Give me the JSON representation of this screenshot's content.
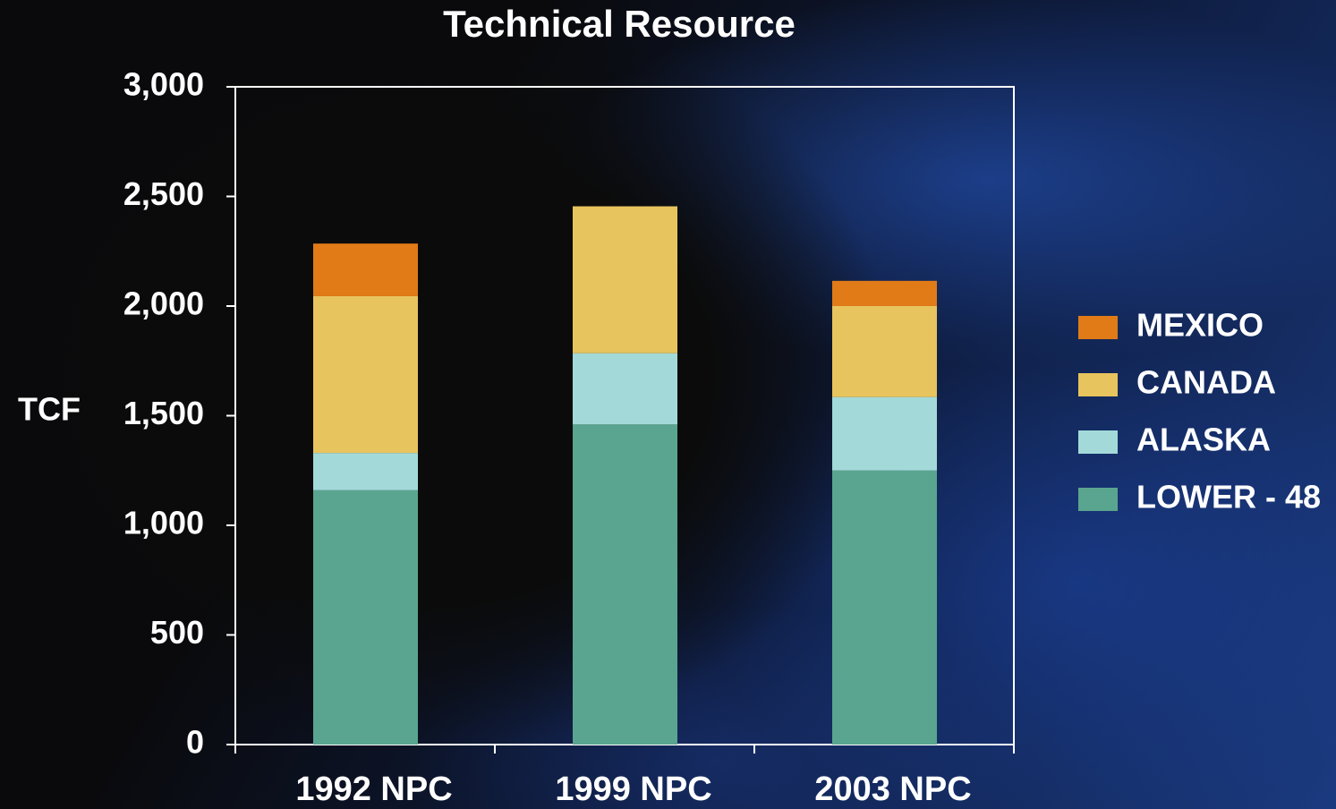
{
  "chart_data": {
    "type": "stacked-bar",
    "title": "Technical Resource",
    "y_label": "TCF",
    "categories": [
      "1992 NPC",
      "1999 NPC",
      "2003 NPC"
    ],
    "series": [
      {
        "name": "LOWER - 48",
        "color": "#5aa58f",
        "values": [
          1160,
          1460,
          1250
        ]
      },
      {
        "name": "ALASKA",
        "color": "#a3dad9",
        "values": [
          170,
          325,
          335
        ]
      },
      {
        "name": "CANADA",
        "color": "#e8c45e",
        "values": [
          715,
          670,
          415
        ]
      },
      {
        "name": "MEXICO",
        "color": "#e07b18",
        "values": [
          240,
          0,
          115
        ]
      }
    ],
    "ylim": [
      0,
      3000
    ],
    "yticks": [
      0,
      500,
      {
        "value": 1000,
        "label": "1,000"
      },
      {
        "value": 1500,
        "label": "1,500"
      },
      {
        "value": 2000,
        "label": "2,000"
      },
      {
        "value": 2500,
        "label": "2,500"
      },
      {
        "value": 3000,
        "label": "3,000"
      }
    ],
    "legend": "right"
  }
}
